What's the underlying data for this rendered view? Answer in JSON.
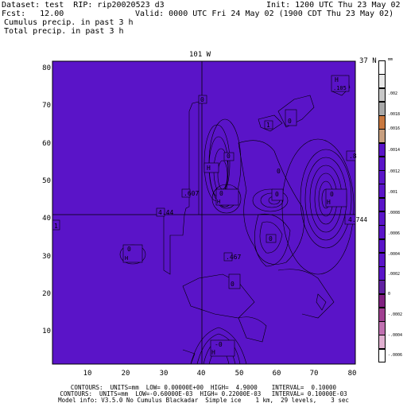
{
  "header": {
    "line1_left": "Dataset: test  RIP: rip20020523 d3",
    "line1_right": "Init: 1200 UTC Thu 23 May 02",
    "line2_left": "Fcst:   12.00",
    "line2_right": "Valid: 0000 UTC Fri 24 May 02 (1900 CDT Thu 23 May 02)",
    "line3": "Cumulus precip. in past 3 h",
    "line4": "Total precip. in past 3 h"
  },
  "map": {
    "top_label": "101 W",
    "right_label": "37 N",
    "fill_color": "#5a14c8",
    "contour_color": "#000000",
    "y_ticks": [
      "80",
      "70",
      "60",
      "50",
      "40",
      "30",
      "20",
      "10"
    ],
    "x_ticks": [
      "10",
      "20",
      "30",
      "40",
      "50",
      "60",
      "70",
      "80"
    ],
    "labels": [
      {
        "id": "h1",
        "text": "H"
      },
      {
        "id": "h1v",
        "text": ".105"
      },
      {
        "id": "l1",
        "text": "0"
      },
      {
        "id": "l2",
        "text": "0"
      },
      {
        "id": "l3",
        "text": "1"
      },
      {
        "id": "l4",
        "text": "0"
      },
      {
        "id": "h2",
        "text": "H"
      },
      {
        "id": "h2v",
        "text": ".8"
      },
      {
        "id": "l5",
        "text": "0"
      },
      {
        "id": "h3",
        "text": "H"
      },
      {
        "id": "h3v",
        "text": ".607"
      },
      {
        "id": "l6",
        "text": "0"
      },
      {
        "id": "l7",
        "text": "0"
      },
      {
        "id": "h4",
        "text": "H"
      },
      {
        "id": "h4v",
        "text": "4.44"
      },
      {
        "id": "l8",
        "text": "0"
      },
      {
        "id": "l9",
        "text": "0"
      },
      {
        "id": "h5",
        "text": "H"
      },
      {
        "id": "h5v",
        "text": ".467"
      },
      {
        "id": "l10",
        "text": "0"
      },
      {
        "id": "l11",
        "text": "-0"
      },
      {
        "id": "h6",
        "text": "H"
      },
      {
        "id": "h6v",
        "text": "4.744"
      },
      {
        "id": "l12",
        "text": "1"
      },
      {
        "id": "l13",
        "text": "0"
      }
    ]
  },
  "colorbar": {
    "unit": "mm",
    "labels": [
      ".002",
      ".0018",
      ".0016",
      ".0014",
      ".0012",
      ".001",
      ".0008",
      ".0006",
      ".0004",
      ".0002",
      "0",
      "-.0002",
      "-.0004",
      "-.0006"
    ],
    "colors": [
      "#ffffff",
      "#e8e8e8",
      "#c8c8c8",
      "#a8a8a8",
      "#c87840",
      "#c8a080",
      "#5a14c8",
      "#5a14c8",
      "#5a14c8",
      "#5a14c8",
      "#5a14c8",
      "#5a14c8",
      "#5a14c8",
      "#5a14c8",
      "#5a14c8",
      "#5a14c8",
      "#6020a0",
      "#802080",
      "#a04090",
      "#c070b0",
      "#e0b0d0",
      "#ffffff"
    ]
  },
  "footer": {
    "line1": "CONTOURS:  UNITS=mm  LOW= 0.00000E+00  HIGH=  4.9000    INTERVAL=  0.10000",
    "line2": "CONTOURS:  UNITS=mm  LOW=-0.60000E-03  HIGH= 0.22000E-03   INTERVAL= 0.10000E-03",
    "line3": "Model info: V3.5.0 No Cumulus Blackadar  Simple ice    1 km,  29 levels,    3 sec"
  }
}
